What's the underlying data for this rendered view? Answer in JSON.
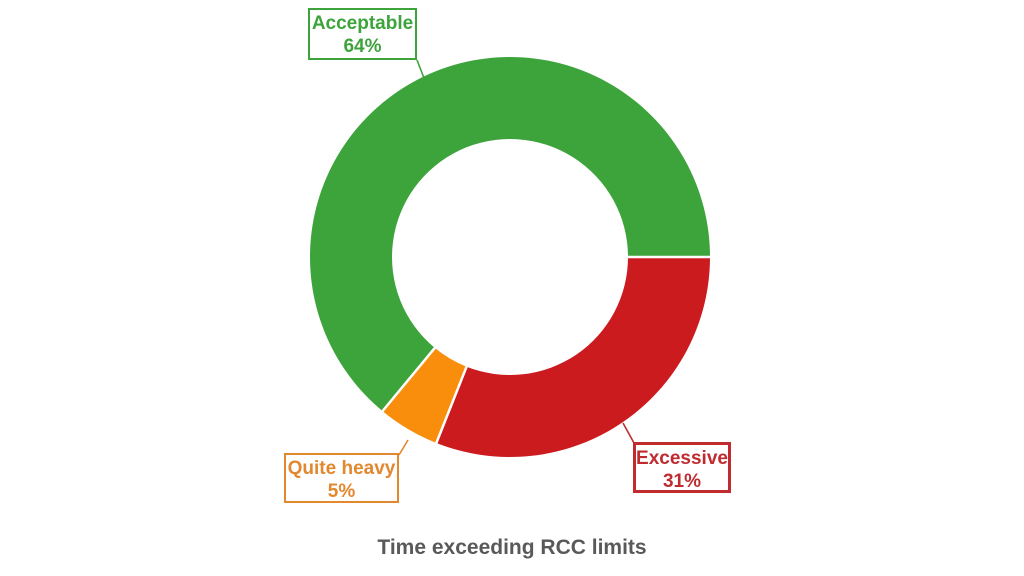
{
  "page": {
    "background": "#ffffff"
  },
  "chart_data": {
    "type": "pie",
    "subtype": "donut",
    "title": "Time exceeding RCC limits",
    "title_color": "#595959",
    "categories": [
      "Acceptable",
      "Excessive",
      "Quite heavy"
    ],
    "values": [
      64,
      31,
      5
    ],
    "unit": "%",
    "slice_colors": [
      "#3DA43C",
      "#CC1B1F",
      "#F98E0D"
    ],
    "rotation_deg": 219.6,
    "donut_hole_ratio": 0.59,
    "separator_color": "#ffffff",
    "legend": "none",
    "data_labels": [
      {
        "category": "Acceptable",
        "value_label": "64%",
        "color": "#3DA43C"
      },
      {
        "category": "Excessive",
        "value_label": "31%",
        "color": "#C02B30"
      },
      {
        "category": "Quite heavy",
        "value_label": "5%",
        "color": "#E2882F"
      }
    ]
  }
}
